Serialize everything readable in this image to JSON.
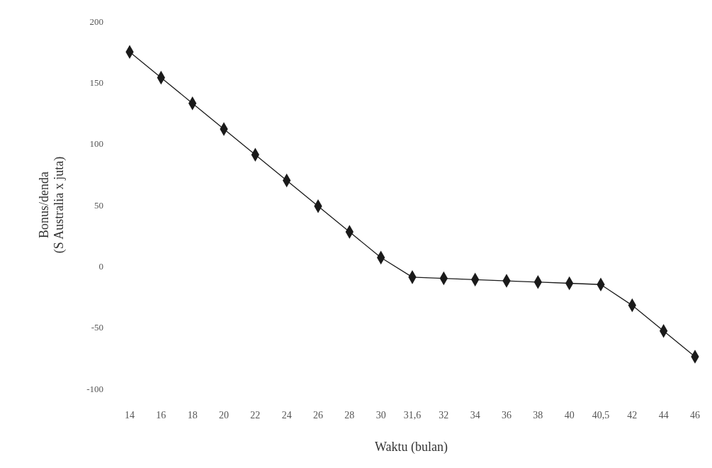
{
  "chart_data": {
    "type": "line",
    "xlabel": "Waktu (bulan)",
    "ylabel": "Bonus/denda\n(S Australia x juta)",
    "categories": [
      "14",
      "16",
      "18",
      "20",
      "22",
      "24",
      "26",
      "28",
      "30",
      "31,6",
      "32",
      "34",
      "36",
      "38",
      "40",
      "40,5",
      "42",
      "44",
      "46"
    ],
    "series": [
      {
        "color": "#1a1a1a",
        "values": [
          175,
          154,
          133,
          112,
          91,
          70,
          49,
          28,
          7,
          -9,
          -10,
          -11,
          -12,
          -13,
          -14,
          -15,
          -32,
          -53,
          -74
        ]
      }
    ],
    "ylim": [
      -100,
      200
    ],
    "yticks": [
      -100,
      -50,
      0,
      50,
      100,
      150,
      200
    ],
    "marker": "diamond",
    "line_style": "solid"
  }
}
